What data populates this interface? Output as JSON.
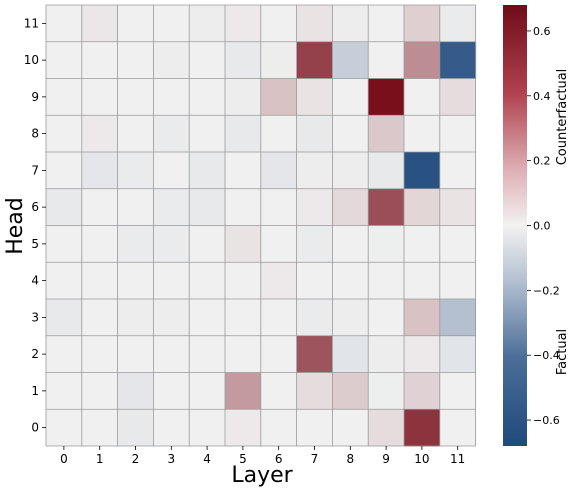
{
  "chart_data": {
    "type": "heatmap",
    "xlabel": "Layer",
    "ylabel": "Head",
    "x_categories": [
      "0",
      "1",
      "2",
      "3",
      "4",
      "5",
      "6",
      "7",
      "8",
      "9",
      "10",
      "11"
    ],
    "y_categories": [
      "11",
      "10",
      "9",
      "8",
      "7",
      "6",
      "5",
      "4",
      "3",
      "2",
      "1",
      "0"
    ],
    "values": [
      [
        0.0,
        0.03,
        0.0,
        0.0,
        0.01,
        0.02,
        0.0,
        0.04,
        0.01,
        0.0,
        0.1,
        -0.02
      ],
      [
        0.0,
        0.0,
        0.0,
        0.01,
        0.0,
        -0.03,
        0.01,
        0.53,
        -0.14,
        0.0,
        0.3,
        -0.62
      ],
      [
        0.0,
        0.0,
        0.0,
        0.0,
        0.0,
        0.01,
        0.14,
        0.04,
        0.0,
        0.68,
        0.0,
        0.06
      ],
      [
        0.0,
        0.02,
        0.0,
        -0.02,
        0.0,
        -0.03,
        0.0,
        -0.03,
        0.0,
        0.12,
        0.0,
        0.0
      ],
      [
        0.0,
        -0.04,
        -0.02,
        0.0,
        -0.03,
        0.0,
        -0.04,
        0.01,
        0.01,
        -0.03,
        -0.66,
        0.0
      ],
      [
        -0.03,
        0.0,
        0.0,
        -0.02,
        -0.03,
        0.0,
        0.0,
        0.02,
        0.07,
        0.49,
        0.08,
        0.04
      ],
      [
        0.0,
        0.0,
        -0.02,
        -0.02,
        0.0,
        0.04,
        0.0,
        -0.02,
        0.0,
        -0.01,
        0.0,
        0.0
      ],
      [
        0.0,
        0.0,
        0.0,
        0.0,
        0.0,
        0.0,
        0.02,
        0.0,
        0.0,
        0.0,
        0.0,
        0.0
      ],
      [
        -0.03,
        0.0,
        0.01,
        0.01,
        0.0,
        0.0,
        0.0,
        -0.02,
        0.01,
        0.0,
        0.14,
        -0.2
      ],
      [
        0.0,
        0.0,
        0.0,
        0.0,
        0.0,
        0.0,
        0.0,
        0.47,
        -0.05,
        0.01,
        0.02,
        -0.05
      ],
      [
        0.0,
        0.0,
        -0.04,
        0.0,
        0.0,
        0.26,
        0.0,
        0.06,
        0.11,
        -0.01,
        0.09,
        0.0
      ],
      [
        0.0,
        0.0,
        -0.03,
        0.0,
        0.0,
        0.02,
        0.0,
        0.0,
        0.0,
        0.06,
        0.57,
        0.0
      ]
    ],
    "colorbar": {
      "vmin": -0.68,
      "vmax": 0.68,
      "ticks": [
        0.6,
        0.4,
        0.2,
        0.0,
        -0.2,
        -0.4,
        -0.6
      ],
      "tick_labels": [
        "0.6",
        "0.4",
        "0.2",
        "0.0",
        "−0.2",
        "−0.4",
        "−0.6"
      ],
      "upper_label": "Counterfactual",
      "lower_label": "Factual",
      "colors": {
        "negative": "#234d80",
        "neutral": "#f0f0f0",
        "positive": "#7a0f1c"
      }
    },
    "grid": true,
    "grid_color": "#9a9a9a"
  }
}
